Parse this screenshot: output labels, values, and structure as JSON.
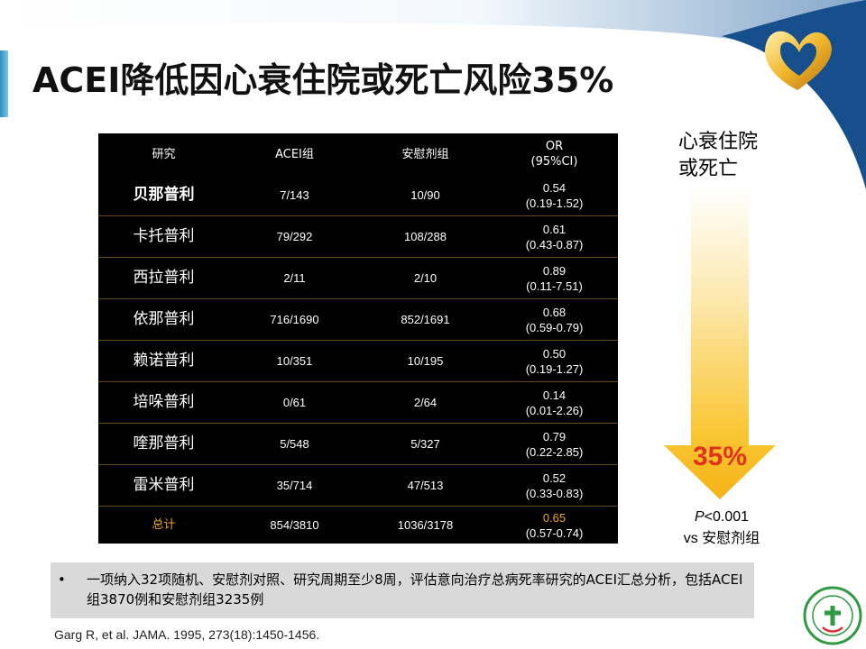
{
  "title": "ACEI降低因心衰住院或死亡风险35%",
  "table": {
    "headers": [
      "研究",
      "ACEI组",
      "安慰剂组",
      "OR",
      "(95%CI)"
    ],
    "rows": [
      {
        "study": "贝那普利",
        "acei": "7/143",
        "placebo": "10/90",
        "or": "0.54",
        "ci": "(0.19-1.52)"
      },
      {
        "study": "卡托普利",
        "acei": "79/292",
        "placebo": "108/288",
        "or": "0.61",
        "ci": "(0.43-0.87)"
      },
      {
        "study": "西拉普利",
        "acei": "2/11",
        "placebo": "2/10",
        "or": "0.89",
        "ci": "(0.11-7.51)"
      },
      {
        "study": "依那普利",
        "acei": "716/1690",
        "placebo": "852/1691",
        "or": "0.68",
        "ci": "(0.59-0.79)"
      },
      {
        "study": "赖诺普利",
        "acei": "10/351",
        "placebo": "10/195",
        "or": "0.50",
        "ci": "(0.19-1.27)"
      },
      {
        "study": "培哚普利",
        "acei": "0/61",
        "placebo": "2/64",
        "or": "0.14",
        "ci": "(0.01-2.26)"
      },
      {
        "study": "喹那普利",
        "acei": "5/548",
        "placebo": "5/327",
        "or": "0.79",
        "ci": "(0.22-2.85)"
      },
      {
        "study": "雷米普利",
        "acei": "35/714",
        "placebo": "47/513",
        "or": "0.52",
        "ci": "(0.33-0.83)"
      }
    ],
    "total": {
      "study": "总计",
      "acei": "854/3810",
      "placebo": "1036/3178",
      "or": "0.65",
      "ci": "(0.57-0.74)"
    }
  },
  "side": {
    "label_line1": "心衰住院",
    "label_line2": "或死亡",
    "percent": "35%",
    "p_symbol": "P",
    "p_rest": "<0.001",
    "vs": "vs 安慰剂组"
  },
  "note": {
    "bullet": "•",
    "text": "一项纳入32项随机、安慰剂对照、研究周期至少8周，评估意向治疗总病死率研究的ACEI汇总分析，包括ACEI组3870例和安慰剂组3235例"
  },
  "reference": "Garg R, et al. JAMA. 1995, 273(18):1450-1456.",
  "colors": {
    "accent_blue": "#2bb4d8",
    "table_bg": "#000000",
    "total_orange": "#f4a520",
    "percent_red": "#e0321c",
    "arrow_yellow": "#f9c531"
  }
}
